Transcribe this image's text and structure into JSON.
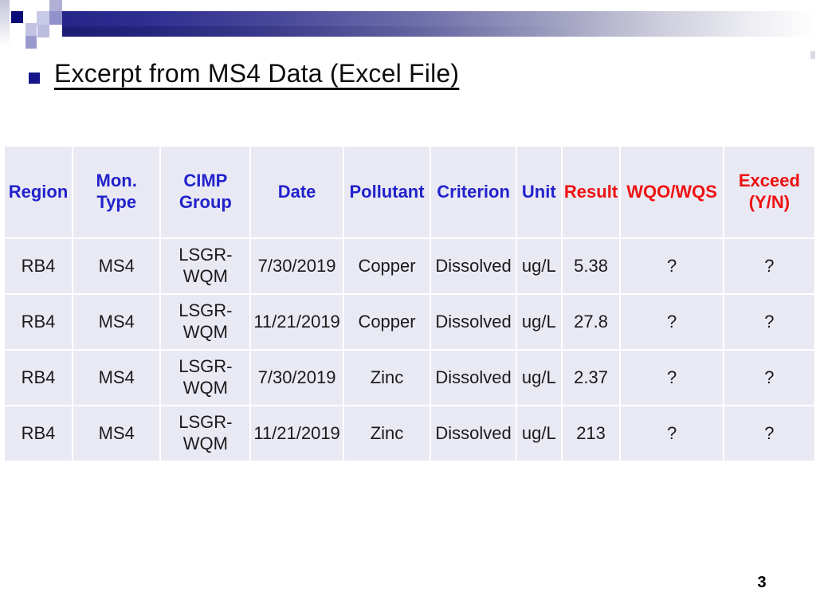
{
  "slide": {
    "title": "Excerpt from MS4 Data (Excel File)",
    "page_number": "3"
  },
  "colors": {
    "header_blue": "#2222cc",
    "header_red": "#ee1111",
    "cell_background": "#e9e9f4",
    "banner_navy": "#26268a",
    "bullet_navy": "#16168a"
  },
  "table": {
    "columns": [
      {
        "label": "Region",
        "color": "#2222cc"
      },
      {
        "label": "Mon. Type",
        "color": "#2222cc"
      },
      {
        "label": "CIMP\nGroup",
        "color": "#2222cc"
      },
      {
        "label": "Date",
        "color": "#2222cc"
      },
      {
        "label": "Pollutant",
        "color": "#2222cc"
      },
      {
        "label": "Criterion",
        "color": "#2222cc"
      },
      {
        "label": "Unit",
        "color": "#2222cc"
      },
      {
        "label": "Result",
        "color": "#ee1111"
      },
      {
        "label": "WQO/WQS",
        "color": "#ee1111"
      },
      {
        "label": "Exceed\n(Y/N)",
        "color": "#ee1111"
      }
    ],
    "rows": [
      [
        "RB4",
        "MS4",
        "LSGR-\nWQM",
        "7/30/2019",
        "Copper",
        "Dissolved",
        "ug/L",
        "5.38",
        "?",
        "?"
      ],
      [
        "RB4",
        "MS4",
        "LSGR-\nWQM",
        "11/21/2019",
        "Copper",
        "Dissolved",
        "ug/L",
        "27.8",
        "?",
        "?"
      ],
      [
        "RB4",
        "MS4",
        "LSGR-\nWQM",
        "7/30/2019",
        "Zinc",
        "Dissolved",
        "ug/L",
        "2.37",
        "?",
        "?"
      ],
      [
        "RB4",
        "MS4",
        "LSGR-\nWQM",
        "11/21/2019",
        "Zinc",
        "Dissolved",
        "ug/L",
        "213",
        "?",
        "?"
      ]
    ]
  }
}
